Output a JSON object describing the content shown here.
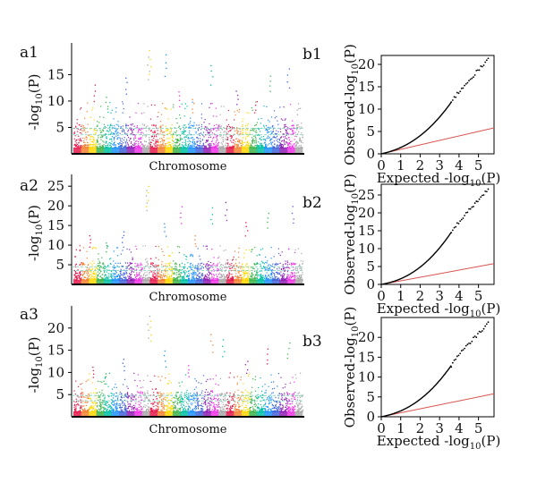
{
  "chart_data": [
    {
      "type": "scatter",
      "subtype": "manhattan",
      "panel_label": "a1",
      "xlabel": "Chromosome",
      "ylabel_main": "-log",
      "ylabel_sub": "10",
      "ylabel_tail": "(P)",
      "yticks": [
        5,
        10,
        15
      ],
      "ylim": [
        0,
        21
      ],
      "threshold_lines": [
        4.8,
        3.6
      ],
      "peaks": [
        {
          "x": 0.1,
          "y": 13.2
        },
        {
          "x": 0.15,
          "y": 11.0
        },
        {
          "x": 0.23,
          "y": 14.8
        },
        {
          "x": 0.33,
          "y": 18.5
        },
        {
          "x": 0.335,
          "y": 19.8
        },
        {
          "x": 0.4,
          "y": 19.0
        },
        {
          "x": 0.46,
          "y": 12.0
        },
        {
          "x": 0.52,
          "y": 10.5
        },
        {
          "x": 0.6,
          "y": 17.2
        },
        {
          "x": 0.71,
          "y": 12.4
        },
        {
          "x": 0.79,
          "y": 10.2
        },
        {
          "x": 0.85,
          "y": 15.2
        },
        {
          "x": 0.93,
          "y": 16.4
        },
        {
          "x": 0.97,
          "y": 9.8
        }
      ]
    },
    {
      "type": "scatter",
      "subtype": "manhattan",
      "panel_label": "a2",
      "xlabel": "Chromosome",
      "ylabel_main": "-log",
      "ylabel_sub": "10",
      "ylabel_tail": "(P)",
      "yticks": [
        5,
        10,
        15,
        20,
        25
      ],
      "ylim": [
        0,
        28
      ],
      "threshold_lines": [
        4.5,
        3.5
      ],
      "peaks": [
        {
          "x": 0.08,
          "y": 12.8
        },
        {
          "x": 0.15,
          "y": 11.0
        },
        {
          "x": 0.22,
          "y": 14.0
        },
        {
          "x": 0.32,
          "y": 24.5
        },
        {
          "x": 0.325,
          "y": 25.5
        },
        {
          "x": 0.4,
          "y": 16.0
        },
        {
          "x": 0.47,
          "y": 20.0
        },
        {
          "x": 0.53,
          "y": 12.5
        },
        {
          "x": 0.6,
          "y": 19.8
        },
        {
          "x": 0.66,
          "y": 21.0
        },
        {
          "x": 0.75,
          "y": 16.2
        },
        {
          "x": 0.84,
          "y": 18.6
        },
        {
          "x": 0.95,
          "y": 20.0
        }
      ]
    },
    {
      "type": "scatter",
      "subtype": "manhattan",
      "panel_label": "a3",
      "xlabel": "Chromosome",
      "ylabel_main": "-log",
      "ylabel_sub": "10",
      "ylabel_tail": "(P)",
      "yticks": [
        5,
        10,
        15,
        20
      ],
      "ylim": [
        0,
        25
      ],
      "threshold_lines": [
        4.8,
        3.6
      ],
      "peaks": [
        {
          "x": 0.09,
          "y": 11.5
        },
        {
          "x": 0.14,
          "y": 10.0
        },
        {
          "x": 0.22,
          "y": 13.5
        },
        {
          "x": 0.33,
          "y": 23.0
        },
        {
          "x": 0.335,
          "y": 22.0
        },
        {
          "x": 0.4,
          "y": 15.0
        },
        {
          "x": 0.5,
          "y": 12.0
        },
        {
          "x": 0.6,
          "y": 19.0
        },
        {
          "x": 0.65,
          "y": 17.5
        },
        {
          "x": 0.75,
          "y": 13.0
        },
        {
          "x": 0.84,
          "y": 15.5
        },
        {
          "x": 0.93,
          "y": 17.0
        }
      ]
    },
    {
      "type": "scatter",
      "subtype": "qq",
      "panel_label": "b1",
      "xlabel_main": "Expected -log",
      "xlabel_sub": "10",
      "xlabel_tail": "(P)",
      "ylabel_main": "Observed-log",
      "ylabel_sub": "10",
      "ylabel_tail": "(P)",
      "xticks": [
        0,
        1,
        2,
        3,
        4,
        5
      ],
      "yticks": [
        0,
        5,
        10,
        15,
        20
      ],
      "xlim": [
        0,
        5.8
      ],
      "ylim": [
        0,
        22
      ],
      "max_expected": 5.5,
      "max_observed": 21,
      "reference_line_color": "#d9534f"
    },
    {
      "type": "scatter",
      "subtype": "qq",
      "panel_label": "b2",
      "xlabel_main": "Expected -log",
      "xlabel_sub": "10",
      "xlabel_tail": "(P)",
      "ylabel_main": "Observed-log",
      "ylabel_sub": "10",
      "ylabel_tail": "(P)",
      "xticks": [
        0,
        1,
        2,
        3,
        4,
        5
      ],
      "yticks": [
        0,
        5,
        10,
        15,
        20,
        25
      ],
      "xlim": [
        0,
        5.8
      ],
      "ylim": [
        0,
        28
      ],
      "max_expected": 5.5,
      "max_observed": 26.5,
      "reference_line_color": "#d9534f"
    },
    {
      "type": "scatter",
      "subtype": "qq",
      "panel_label": "b3",
      "xlabel_main": "Expected -log",
      "xlabel_sub": "10",
      "xlabel_tail": "(P)",
      "ylabel_main": "Observed-log",
      "ylabel_sub": "10",
      "ylabel_tail": "(P)",
      "xticks": [
        0,
        1,
        2,
        3,
        4,
        5
      ],
      "yticks": [
        0,
        5,
        10,
        15,
        20
      ],
      "xlim": [
        0,
        5.8
      ],
      "ylim": [
        0,
        25
      ],
      "max_expected": 5.5,
      "max_observed": 23.5,
      "reference_line_color": "#d9534f"
    }
  ],
  "colors": {
    "palette": [
      "#e6194b",
      "#f58231",
      "#ffd700",
      "#3cb44b",
      "#00bfa5",
      "#1e90ff",
      "#4363d8",
      "#911eb4",
      "#f032e6",
      "#a9a9a9"
    ],
    "threshold": "#6fd3b8",
    "axis": "#000000",
    "qq_points": "#000000"
  }
}
